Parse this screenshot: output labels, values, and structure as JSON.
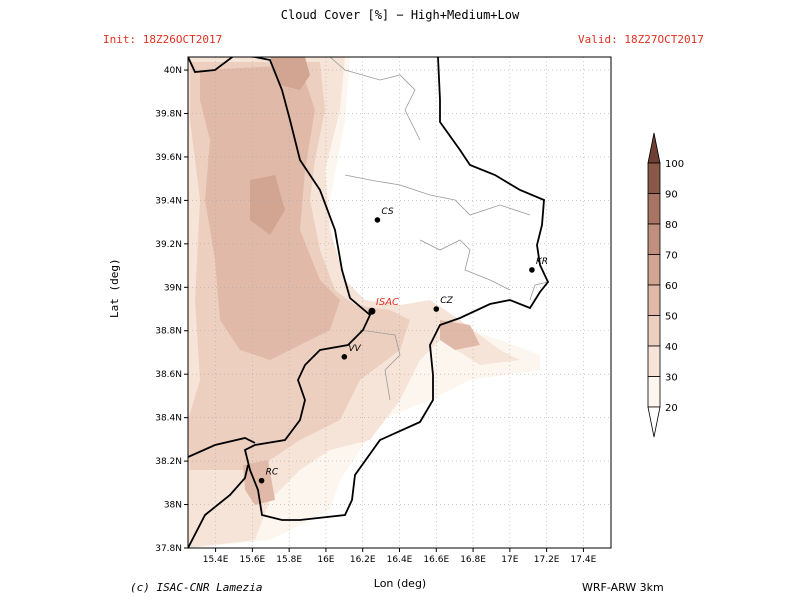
{
  "header": {
    "title": "Cloud Cover [%] − High+Medium+Low",
    "init": "Init: 18Z26OCT2017",
    "valid": "Valid: 18Z27OCT2017"
  },
  "axes": {
    "x_label": "Lon (deg)",
    "y_label": "Lat (deg)",
    "x_ticks": [
      "15.4E",
      "15.6E",
      "15.8E",
      "16E",
      "16.2E",
      "16.4E",
      "16.6E",
      "16.8E",
      "17E",
      "17.2E",
      "17.4E"
    ],
    "y_ticks": [
      "40N",
      "39.8N",
      "39.6N",
      "39.4N",
      "39.2N",
      "39N",
      "38.8N",
      "38.6N",
      "38.4N",
      "38.2N",
      "38N",
      "37.8N"
    ]
  },
  "cities": [
    {
      "name": "CS",
      "lon": 16.28,
      "lat": 39.31,
      "highlight": false
    },
    {
      "name": "ISAC",
      "lon": 16.25,
      "lat": 38.89,
      "highlight": true
    },
    {
      "name": "CZ",
      "lon": 16.6,
      "lat": 38.9,
      "highlight": false
    },
    {
      "name": "VV",
      "lon": 16.1,
      "lat": 38.68,
      "highlight": false
    },
    {
      "name": "KR",
      "lon": 17.12,
      "lat": 39.08,
      "highlight": false
    },
    {
      "name": "RC",
      "lon": 15.65,
      "lat": 38.11,
      "highlight": false
    }
  ],
  "colorbar": {
    "levels": [
      "20",
      "30",
      "40",
      "50",
      "60",
      "70",
      "80",
      "90",
      "100"
    ],
    "colors": [
      "#fdf6ef",
      "#f6e4d8",
      "#edcfc0",
      "#e0b9a8",
      "#d2a492",
      "#c08f7e",
      "#a87464",
      "#8a5848",
      "#6e4034"
    ]
  },
  "footer": {
    "credit": "(c) ISAC-CNR Lamezia",
    "model": "WRF-ARW 3km"
  }
}
